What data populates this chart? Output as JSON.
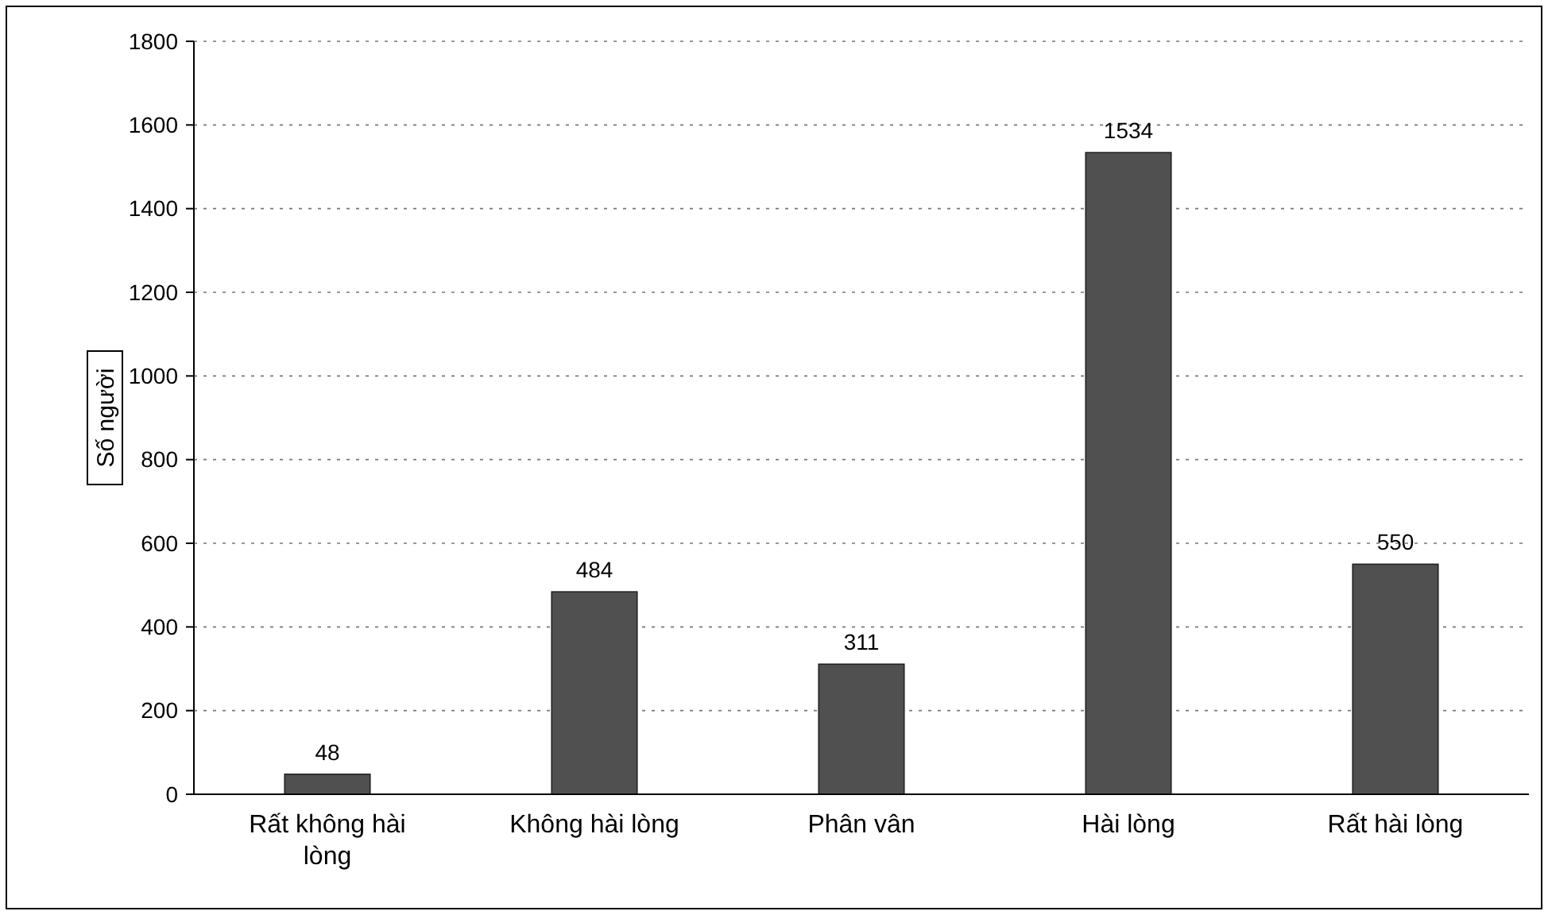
{
  "chart_data": {
    "type": "bar",
    "ylabel": "Số người",
    "categories": [
      "Rất không hài lòng",
      "Không hài lòng",
      "Phân vân",
      "Hài lòng",
      "Rất hài lòng"
    ],
    "values": [
      48,
      484,
      311,
      1534,
      550
    ],
    "color": "#505050",
    "ylim": [
      0,
      1800
    ],
    "yticks": [
      0,
      200,
      400,
      600,
      800,
      1000,
      1200,
      1400,
      1600,
      1800
    ],
    "grid": "y",
    "data_labels": true
  }
}
